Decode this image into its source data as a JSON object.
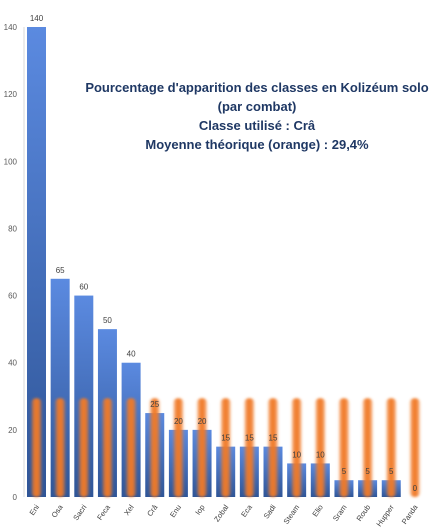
{
  "chart_data": {
    "type": "bar",
    "title_lines": [
      "Pourcentage d'apparition des classes en Kolizéum solo",
      "(par combat)",
      "Classe utilisé : Crâ",
      "Moyenne théorique (orange) : 29,4%"
    ],
    "categories": [
      "Eni",
      "Osa",
      "Sacri",
      "Feca",
      "Xel",
      "Crâ",
      "Enu",
      "Iop",
      "Zobal",
      "Eca",
      "Sadi",
      "Steam",
      "Elio",
      "Sram",
      "Roub",
      "Hupper",
      "Panda"
    ],
    "values": [
      140,
      65,
      60,
      50,
      40,
      25,
      20,
      20,
      15,
      15,
      15,
      10,
      10,
      5,
      5,
      5,
      0
    ],
    "overlay_value": 29.4,
    "ylim": [
      0,
      140
    ],
    "yticks": [
      0,
      20,
      40,
      60,
      80,
      100,
      120,
      140
    ],
    "grid": false,
    "legend": "none",
    "colors": {
      "bar": "#4472c4",
      "bar_light": "#5b8ae0",
      "bar_dark": "#2f5597",
      "overlay": "#f07a28",
      "text": "#1f3864"
    }
  }
}
